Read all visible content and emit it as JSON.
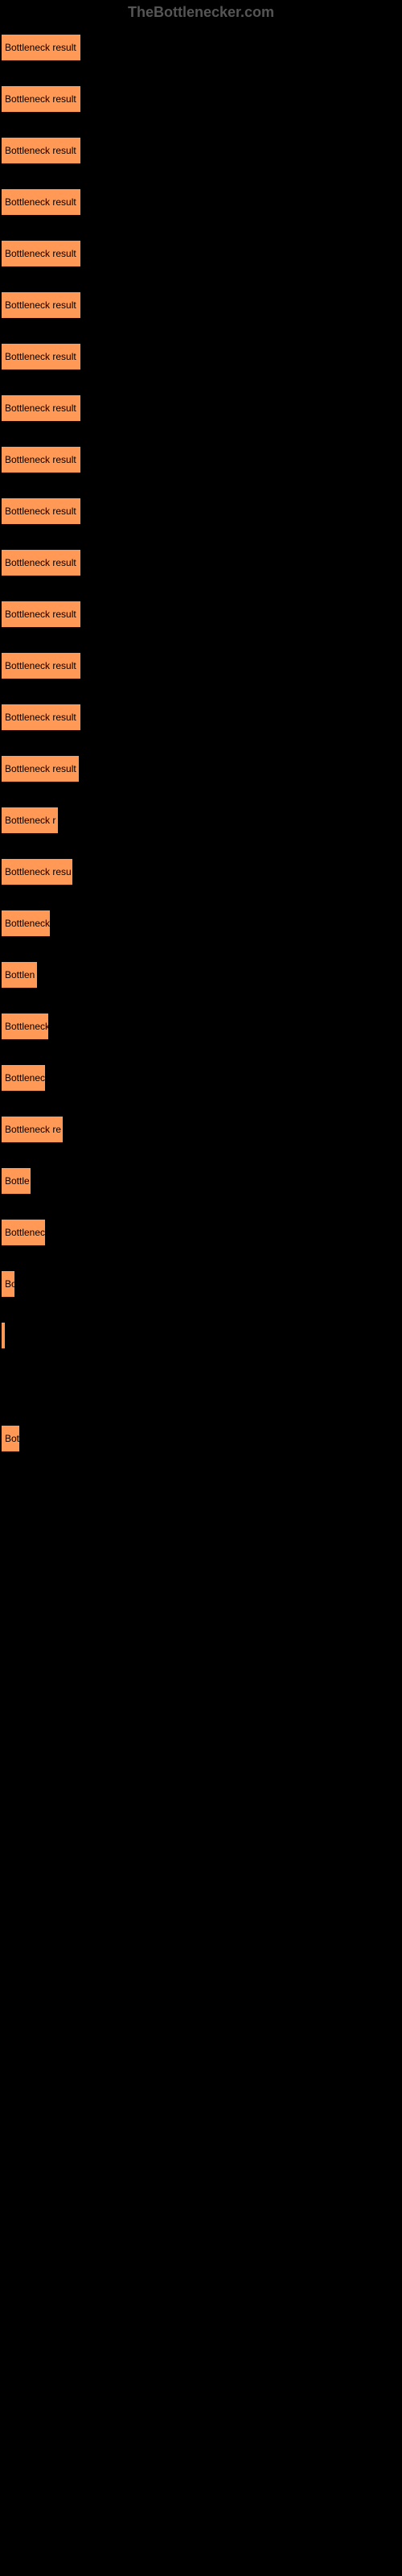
{
  "header": {
    "text": "TheBottlenecker.com"
  },
  "chart": {
    "type": "bar",
    "bar_color": "#ff9955",
    "border_color": "#000000",
    "background_color": "#000000",
    "label_color": "#000000",
    "label_fontsize": 12,
    "bars": [
      {
        "label": "Bottleneck result",
        "width": 102
      },
      {
        "label": "Bottleneck result",
        "width": 102
      },
      {
        "label": "Bottleneck result",
        "width": 102
      },
      {
        "label": "Bottleneck result",
        "width": 102
      },
      {
        "label": "Bottleneck result",
        "width": 102
      },
      {
        "label": "Bottleneck result",
        "width": 102
      },
      {
        "label": "Bottleneck result",
        "width": 102
      },
      {
        "label": "Bottleneck result",
        "width": 102
      },
      {
        "label": "Bottleneck result",
        "width": 102
      },
      {
        "label": "Bottleneck result",
        "width": 102
      },
      {
        "label": "Bottleneck result",
        "width": 102
      },
      {
        "label": "Bottleneck result",
        "width": 102
      },
      {
        "label": "Bottleneck result",
        "width": 102
      },
      {
        "label": "Bottleneck result",
        "width": 102
      },
      {
        "label": "Bottleneck result",
        "width": 100
      },
      {
        "label": "Bottleneck r",
        "width": 74
      },
      {
        "label": "Bottleneck resu",
        "width": 92
      },
      {
        "label": "Bottleneck",
        "width": 64
      },
      {
        "label": "Bottlen",
        "width": 48
      },
      {
        "label": "Bottleneck",
        "width": 62
      },
      {
        "label": "Bottlenec",
        "width": 58
      },
      {
        "label": "Bottleneck re",
        "width": 80
      },
      {
        "label": "Bottle",
        "width": 40
      },
      {
        "label": "Bottlenec",
        "width": 58
      },
      {
        "label": "Bo",
        "width": 20
      },
      {
        "label": "",
        "width": 8
      },
      {
        "label": "",
        "width": 0
      },
      {
        "label": "Bot",
        "width": 26
      },
      {
        "label": "",
        "width": 0
      },
      {
        "label": "",
        "width": 0
      },
      {
        "label": "",
        "width": 0
      },
      {
        "label": "",
        "width": 0
      },
      {
        "label": "",
        "width": 0
      },
      {
        "label": "",
        "width": 0
      },
      {
        "label": "",
        "width": 0
      },
      {
        "label": "",
        "width": 0
      },
      {
        "label": "",
        "width": 0
      },
      {
        "label": "",
        "width": 0
      },
      {
        "label": "",
        "width": 0
      },
      {
        "label": "",
        "width": 0
      },
      {
        "label": "",
        "width": 0
      },
      {
        "label": "",
        "width": 0
      },
      {
        "label": "",
        "width": 0
      },
      {
        "label": "",
        "width": 0
      },
      {
        "label": "",
        "width": 0
      },
      {
        "label": "",
        "width": 0
      },
      {
        "label": "",
        "width": 0
      },
      {
        "label": "",
        "width": 0
      }
    ]
  }
}
